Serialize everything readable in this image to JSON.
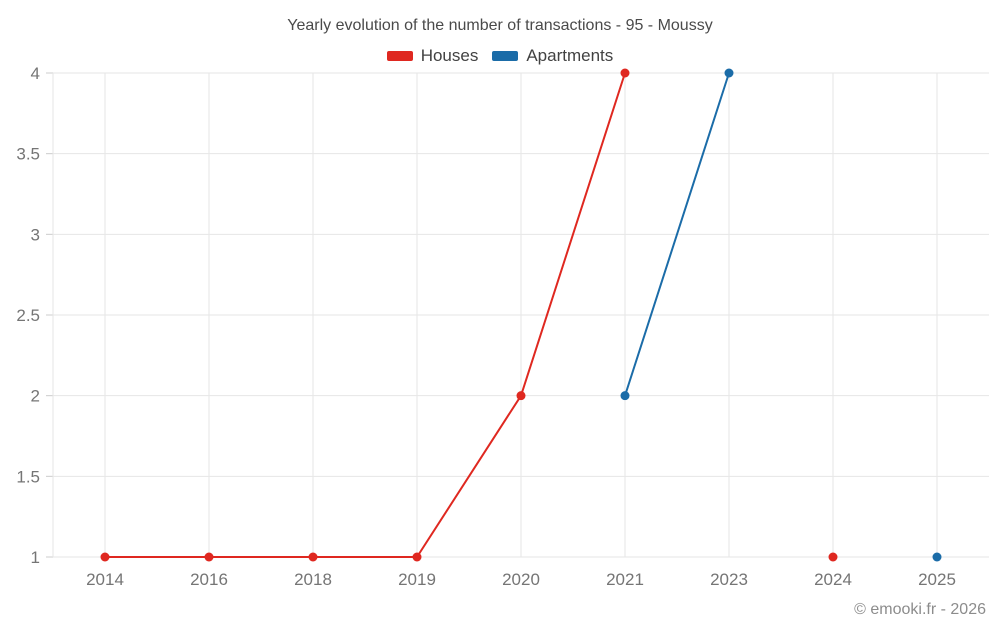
{
  "chart_data": {
    "type": "line",
    "title": "Yearly evolution of the number of transactions - 95 - Moussy",
    "categories": [
      "2014",
      "2016",
      "2018",
      "2019",
      "2020",
      "2021",
      "2023",
      "2024",
      "2025"
    ],
    "series": [
      {
        "name": "Houses",
        "color": "#df2820",
        "values": [
          1,
          1,
          1,
          1,
          2,
          4,
          null,
          1,
          null
        ]
      },
      {
        "name": "Apartments",
        "color": "#1b6ca8",
        "values": [
          null,
          null,
          null,
          null,
          null,
          2,
          4,
          null,
          1
        ]
      }
    ],
    "ylim": [
      1,
      4
    ],
    "yticks": [
      1,
      1.5,
      2,
      2.5,
      3,
      3.5,
      4
    ],
    "xlabel": "",
    "ylabel": "",
    "grid": "both",
    "legend_position": "top",
    "marker_radius": 4.5,
    "line_width": 2
  },
  "watermark": "© emooki.fr - 2026",
  "colors": {
    "background": "#ffffff",
    "grid": "#e6e6e6",
    "tick": "#cccccc",
    "axis_label": "#757575",
    "title": "#4a4a4a",
    "legend_text": "#424242",
    "watermark": "#8c8c8c"
  }
}
